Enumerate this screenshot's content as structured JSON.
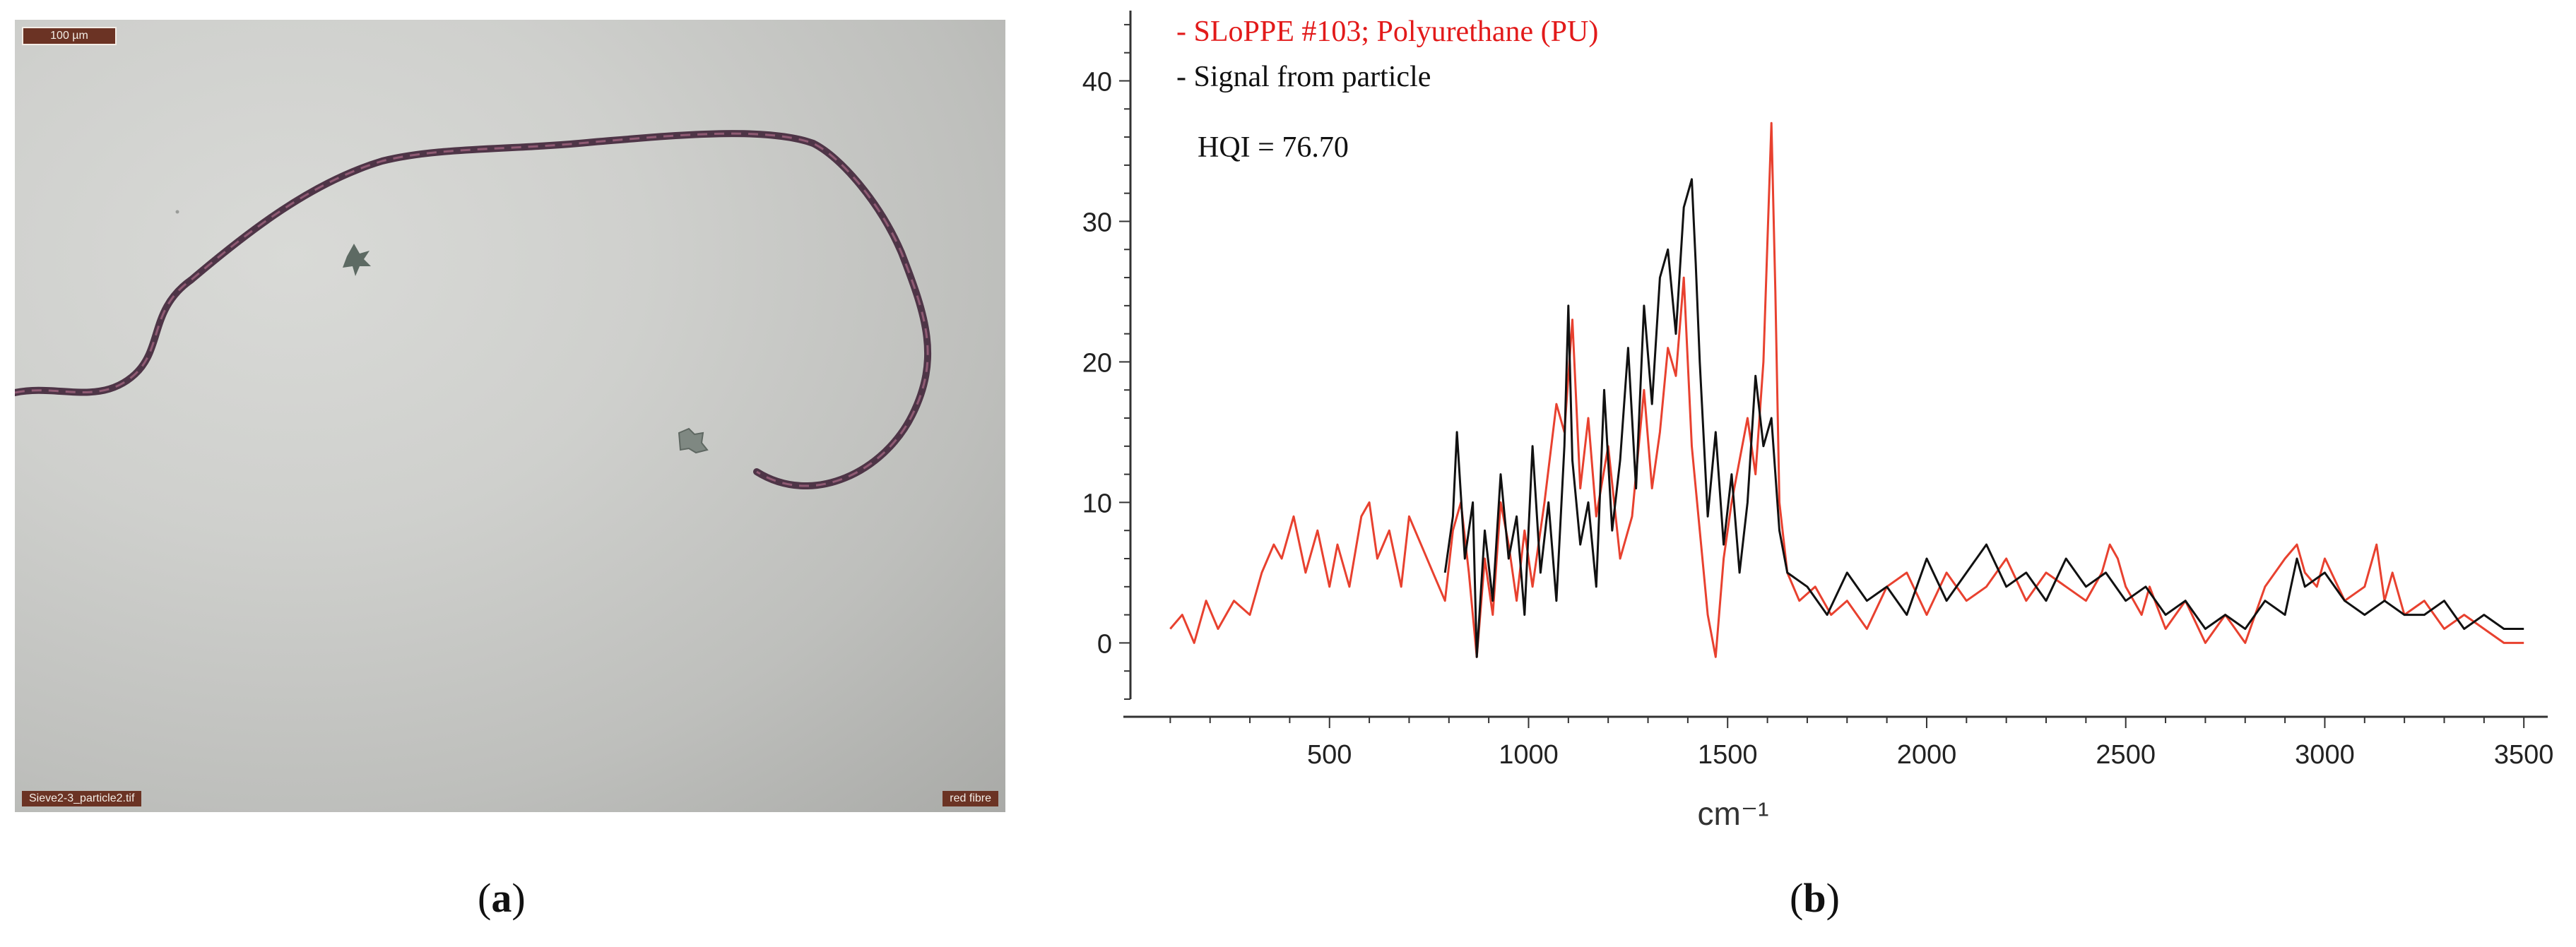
{
  "panel_a": {
    "scale_bar_text": "100 µm",
    "filename": "Sieve2-3_particle2.tif",
    "annotation": "red fibre"
  },
  "captions": {
    "a_open": "(",
    "a_letter": "a",
    "a_close": ")",
    "b_open": "(",
    "b_letter": "b",
    "b_close": ")"
  },
  "colors": {
    "reference": "#e8412f",
    "particle": "#111111",
    "legend_reference": "#e21a1a"
  },
  "chart_data": {
    "type": "line",
    "xlabel": "cm⁻¹",
    "ylabel": "",
    "xlim": [
      0,
      3560
    ],
    "ylim": [
      -4,
      45
    ],
    "xticks": [
      500,
      1000,
      1500,
      2000,
      2500,
      3000,
      3500
    ],
    "yticks": [
      0,
      10,
      20,
      30,
      40
    ],
    "grid": false,
    "legend_placement": "top-left",
    "legend": [
      "- SLoPPE #103; Polyurethane (PU)",
      "- Signal from particle"
    ],
    "annotation": "HQI = 76.70",
    "series": [
      {
        "name": "- SLoPPE #103; Polyurethane (PU)",
        "color": "#e8412f",
        "x": [
          100,
          130,
          160,
          190,
          220,
          260,
          300,
          330,
          360,
          380,
          410,
          440,
          470,
          500,
          520,
          550,
          580,
          600,
          620,
          650,
          680,
          700,
          730,
          760,
          790,
          810,
          830,
          850,
          870,
          890,
          910,
          930,
          950,
          970,
          990,
          1010,
          1040,
          1070,
          1090,
          1110,
          1130,
          1150,
          1170,
          1200,
          1230,
          1260,
          1290,
          1310,
          1330,
          1350,
          1370,
          1390,
          1410,
          1430,
          1450,
          1470,
          1490,
          1510,
          1530,
          1550,
          1570,
          1590,
          1610,
          1620,
          1630,
          1650,
          1680,
          1720,
          1760,
          1800,
          1850,
          1900,
          1950,
          2000,
          2050,
          2100,
          2150,
          2200,
          2250,
          2300,
          2350,
          2400,
          2440,
          2460,
          2480,
          2500,
          2520,
          2540,
          2560,
          2600,
          2650,
          2700,
          2750,
          2800,
          2850,
          2900,
          2930,
          2950,
          2980,
          3000,
          3050,
          3100,
          3130,
          3150,
          3170,
          3200,
          3250,
          3300,
          3350,
          3400,
          3450,
          3500
        ],
        "y": [
          1,
          2,
          0,
          3,
          1,
          3,
          2,
          5,
          7,
          6,
          9,
          5,
          8,
          4,
          7,
          4,
          9,
          10,
          6,
          8,
          4,
          9,
          7,
          5,
          3,
          8,
          10,
          5,
          -1,
          6,
          2,
          10,
          7,
          3,
          8,
          4,
          10,
          17,
          15,
          23,
          11,
          16,
          9,
          14,
          6,
          9,
          18,
          11,
          15,
          21,
          19,
          26,
          14,
          8,
          2,
          -1,
          6,
          10,
          13,
          16,
          12,
          20,
          37,
          25,
          10,
          5,
          3,
          4,
          2,
          3,
          1,
          4,
          5,
          2,
          5,
          3,
          4,
          6,
          3,
          5,
          4,
          3,
          5,
          7,
          6,
          4,
          3,
          2,
          4,
          1,
          3,
          0,
          2,
          0,
          4,
          6,
          7,
          5,
          4,
          6,
          3,
          4,
          7,
          3,
          5,
          2,
          3,
          1,
          2,
          1,
          0,
          0
        ]
      },
      {
        "name": "- Signal from particle",
        "color": "#111111",
        "x": [
          790,
          810,
          820,
          840,
          860,
          870,
          890,
          910,
          930,
          950,
          970,
          990,
          1010,
          1030,
          1050,
          1070,
          1090,
          1100,
          1110,
          1130,
          1150,
          1170,
          1190,
          1210,
          1230,
          1250,
          1270,
          1290,
          1310,
          1330,
          1350,
          1370,
          1390,
          1410,
          1420,
          1430,
          1450,
          1470,
          1490,
          1510,
          1530,
          1550,
          1570,
          1590,
          1610,
          1630,
          1650,
          1700,
          1750,
          1800,
          1850,
          1900,
          1950,
          2000,
          2050,
          2100,
          2150,
          2200,
          2250,
          2300,
          2350,
          2400,
          2450,
          2500,
          2550,
          2600,
          2650,
          2700,
          2750,
          2800,
          2850,
          2900,
          2930,
          2950,
          3000,
          3050,
          3100,
          3150,
          3200,
          3250,
          3300,
          3350,
          3400,
          3450,
          3500
        ],
        "y": [
          5,
          9,
          15,
          6,
          10,
          -1,
          8,
          3,
          12,
          6,
          9,
          2,
          14,
          5,
          10,
          3,
          14,
          24,
          13,
          7,
          10,
          4,
          18,
          8,
          13,
          21,
          11,
          24,
          17,
          26,
          28,
          22,
          31,
          33,
          27,
          20,
          9,
          15,
          7,
          12,
          5,
          10,
          19,
          14,
          16,
          8,
          5,
          4,
          2,
          5,
          3,
          4,
          2,
          6,
          3,
          5,
          7,
          4,
          5,
          3,
          6,
          4,
          5,
          3,
          4,
          2,
          3,
          1,
          2,
          1,
          3,
          2,
          6,
          4,
          5,
          3,
          2,
          3,
          2,
          2,
          3,
          1,
          2,
          1,
          1
        ]
      }
    ]
  }
}
